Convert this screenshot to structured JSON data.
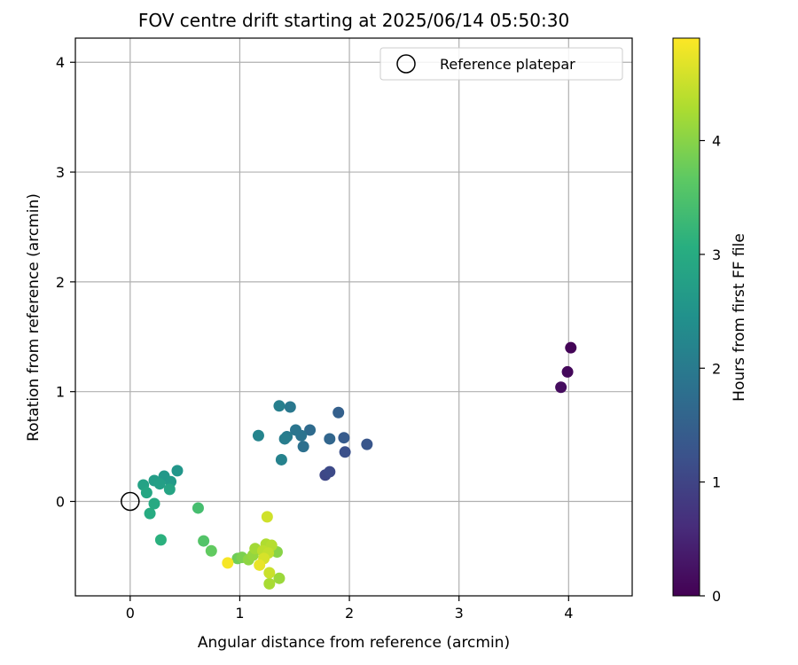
{
  "chart_data": {
    "type": "scatter",
    "title": "FOV centre drift starting at 2025/06/14 05:50:30",
    "xlabel": "Angular distance from reference (arcmin)",
    "ylabel": "Rotation from reference (arcmin)",
    "xlim": [
      -0.5,
      4.58
    ],
    "ylim": [
      -0.86,
      4.22
    ],
    "xticks": [
      0,
      1,
      2,
      3,
      4
    ],
    "yticks": [
      0,
      1,
      2,
      3,
      4
    ],
    "grid": true,
    "legend": {
      "placement": "upper right",
      "entries": [
        "Reference platepar"
      ]
    },
    "reference_point": {
      "x": 0,
      "y": 0,
      "label": "Reference platepar"
    },
    "colorbar": {
      "label": "Hours from first FF file",
      "range": [
        0,
        4.9
      ],
      "ticks": [
        0,
        1,
        2,
        3,
        4
      ],
      "colormap": "viridis"
    },
    "points": [
      {
        "x": 4.02,
        "y": 1.4,
        "h": 0.05
      },
      {
        "x": 3.99,
        "y": 1.18,
        "h": 0.1
      },
      {
        "x": 3.93,
        "y": 1.04,
        "h": 0.15
      },
      {
        "x": 1.78,
        "y": 0.24,
        "h": 1.05
      },
      {
        "x": 1.82,
        "y": 0.27,
        "h": 1.1
      },
      {
        "x": 1.96,
        "y": 0.45,
        "h": 1.2
      },
      {
        "x": 2.16,
        "y": 0.52,
        "h": 1.3
      },
      {
        "x": 1.95,
        "y": 0.58,
        "h": 1.4
      },
      {
        "x": 1.9,
        "y": 0.81,
        "h": 1.5
      },
      {
        "x": 1.82,
        "y": 0.57,
        "h": 1.6
      },
      {
        "x": 1.64,
        "y": 0.65,
        "h": 1.7
      },
      {
        "x": 1.58,
        "y": 0.5,
        "h": 1.8
      },
      {
        "x": 1.56,
        "y": 0.6,
        "h": 1.85
      },
      {
        "x": 1.51,
        "y": 0.65,
        "h": 1.9
      },
      {
        "x": 1.46,
        "y": 0.86,
        "h": 1.95
      },
      {
        "x": 1.43,
        "y": 0.59,
        "h": 2.0
      },
      {
        "x": 1.41,
        "y": 0.57,
        "h": 2.05
      },
      {
        "x": 1.36,
        "y": 0.87,
        "h": 2.1
      },
      {
        "x": 1.38,
        "y": 0.38,
        "h": 2.15
      },
      {
        "x": 1.17,
        "y": 0.6,
        "h": 2.2
      },
      {
        "x": 0.43,
        "y": 0.28,
        "h": 2.55
      },
      {
        "x": 0.31,
        "y": 0.23,
        "h": 2.6
      },
      {
        "x": 0.37,
        "y": 0.18,
        "h": 2.65
      },
      {
        "x": 0.22,
        "y": 0.19,
        "h": 2.7
      },
      {
        "x": 0.27,
        "y": 0.16,
        "h": 2.75
      },
      {
        "x": 0.12,
        "y": 0.15,
        "h": 2.8
      },
      {
        "x": 0.36,
        "y": 0.11,
        "h": 2.85
      },
      {
        "x": 0.15,
        "y": 0.08,
        "h": 2.9
      },
      {
        "x": 0.22,
        "y": -0.02,
        "h": 2.95
      },
      {
        "x": 0.18,
        "y": -0.11,
        "h": 3.0
      },
      {
        "x": 0.28,
        "y": -0.35,
        "h": 3.1
      },
      {
        "x": 0.62,
        "y": -0.06,
        "h": 3.4
      },
      {
        "x": 0.67,
        "y": -0.36,
        "h": 3.55
      },
      {
        "x": 0.74,
        "y": -0.45,
        "h": 3.7
      },
      {
        "x": 0.98,
        "y": -0.52,
        "h": 3.8
      },
      {
        "x": 1.02,
        "y": -0.51,
        "h": 3.9
      },
      {
        "x": 1.34,
        "y": -0.46,
        "h": 4.0
      },
      {
        "x": 1.08,
        "y": -0.53,
        "h": 4.05
      },
      {
        "x": 1.12,
        "y": -0.49,
        "h": 4.1
      },
      {
        "x": 1.36,
        "y": -0.7,
        "h": 4.15
      },
      {
        "x": 1.14,
        "y": -0.43,
        "h": 4.2
      },
      {
        "x": 1.27,
        "y": -0.75,
        "h": 4.25
      },
      {
        "x": 1.24,
        "y": -0.39,
        "h": 4.3
      },
      {
        "x": 1.29,
        "y": -0.4,
        "h": 4.35
      },
      {
        "x": 1.21,
        "y": -0.45,
        "h": 4.4
      },
      {
        "x": 1.26,
        "y": -0.47,
        "h": 4.45
      },
      {
        "x": 1.27,
        "y": -0.65,
        "h": 4.5
      },
      {
        "x": 1.25,
        "y": -0.14,
        "h": 4.55
      },
      {
        "x": 1.22,
        "y": -0.52,
        "h": 4.6
      },
      {
        "x": 1.18,
        "y": -0.58,
        "h": 4.75
      },
      {
        "x": 0.89,
        "y": -0.56,
        "h": 4.85
      }
    ]
  }
}
